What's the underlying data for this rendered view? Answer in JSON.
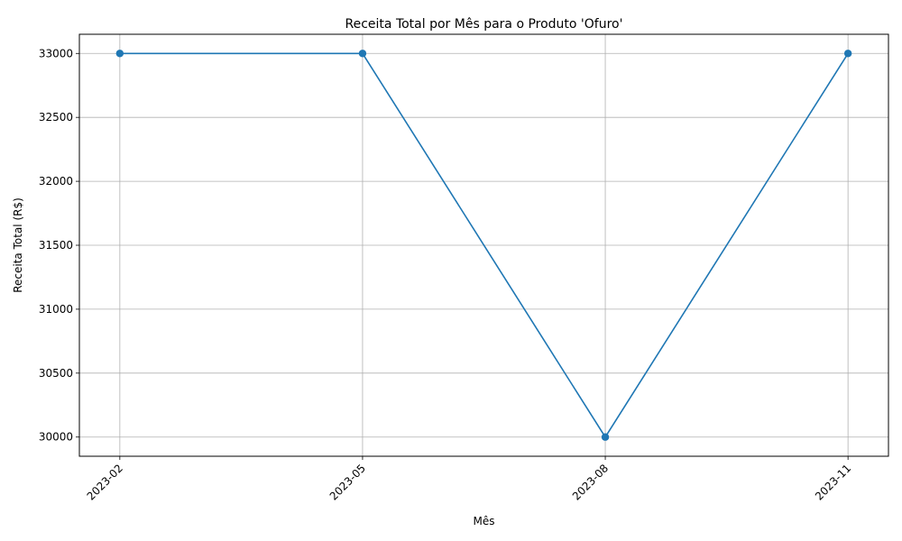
{
  "chart_data": {
    "type": "line",
    "title": "Receita Total por Mês para o Produto 'Ofuro'",
    "xlabel": "Mês",
    "ylabel": "Receita Total (R$)",
    "categories": [
      "2023-02",
      "2023-05",
      "2023-08",
      "2023-11"
    ],
    "series": [
      {
        "values": [
          33000,
          33000,
          30000,
          33000
        ]
      }
    ],
    "ylim": [
      29850,
      33150
    ],
    "yticks": [
      30000,
      30500,
      31000,
      31500,
      32000,
      32500,
      33000
    ],
    "grid": true,
    "line_color": "#1f77b4",
    "marker": "circle"
  }
}
